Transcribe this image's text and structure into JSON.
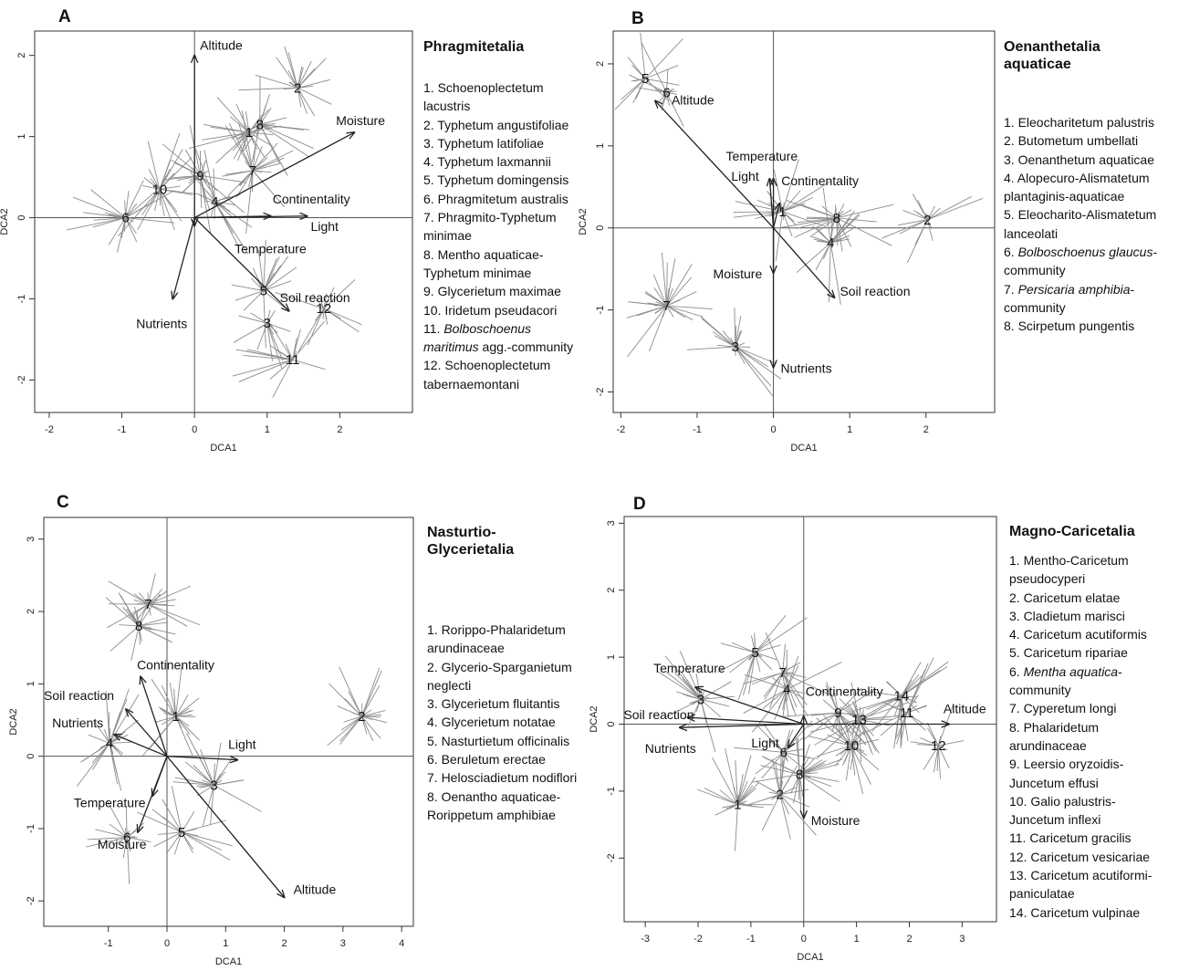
{
  "chart_data": [
    {
      "panel": "A",
      "type": "scatter",
      "title": "Phragmitetalia",
      "xlabel": "DCA1",
      "ylabel": "DCA2",
      "xlim": [
        -2.2,
        3.0
      ],
      "ylim": [
        -2.4,
        2.3
      ],
      "xticks": [
        -2,
        -1,
        0,
        1,
        2
      ],
      "yticks": [
        -2,
        -1,
        0,
        1,
        2
      ],
      "legend": [
        "1. Schoenoplectetum lacustris",
        "2. Typhetum angustifoliae",
        "3. Typhetum latifoliae",
        "4. Typhetum laxmannii",
        "5. Typhetum domingensis",
        "6. Phragmitetum australis",
        "7. Phragmito-Typhetum minimae",
        "8. Mentho aquaticae-Typhetum minimae",
        "9. Glycerietum maximae",
        "10. Iridetum pseudacori",
        "11. Bolboschoenus maritimus agg.-community",
        "12. Schoenoplectetum tabernaemontani"
      ],
      "centroids": [
        {
          "label": "1",
          "x": 0.75,
          "y": 1.05
        },
        {
          "label": "2",
          "x": 1.42,
          "y": 1.6
        },
        {
          "label": "3",
          "x": 1.0,
          "y": -1.3
        },
        {
          "label": "4",
          "x": 0.28,
          "y": 0.2
        },
        {
          "label": "5",
          "x": 0.95,
          "y": -0.9
        },
        {
          "label": "6",
          "x": -0.95,
          "y": 0.0
        },
        {
          "label": "7",
          "x": 0.8,
          "y": 0.58
        },
        {
          "label": "8",
          "x": 0.9,
          "y": 1.15
        },
        {
          "label": "9",
          "x": 0.08,
          "y": 0.52
        },
        {
          "label": "10",
          "x": -0.48,
          "y": 0.35
        },
        {
          "label": "11",
          "x": 1.35,
          "y": -1.75
        },
        {
          "label": "12",
          "x": 1.78,
          "y": -1.12
        }
      ],
      "vectors": [
        {
          "name": "Altitude",
          "x": 0.0,
          "y": 2.0
        },
        {
          "name": "Moisture",
          "x": 2.2,
          "y": 1.05
        },
        {
          "name": "Continentality",
          "x": 1.05,
          "y": 0.02
        },
        {
          "name": "Light",
          "x": 1.55,
          "y": 0.02
        },
        {
          "name": "Temperature",
          "x": 0.0,
          "y": -0.1
        },
        {
          "name": "Soil reaction",
          "x": 1.3,
          "y": -1.15
        },
        {
          "name": "Nutrients",
          "x": -0.3,
          "y": -1.0
        }
      ]
    },
    {
      "panel": "B",
      "type": "scatter",
      "title": "Oenanthetalia\naquaticae",
      "xlabel": "DCA1",
      "ylabel": "DCA2",
      "xlim": [
        -2.1,
        2.9
      ],
      "ylim": [
        -2.25,
        2.4
      ],
      "xticks": [
        -2,
        -1,
        0,
        1,
        2
      ],
      "yticks": [
        -2,
        -1,
        0,
        1,
        2
      ],
      "legend": [
        "1. Eleocharitetum palustris",
        "2. Butometum umbellati",
        "3. Oenanthetum aquaticae",
        "4. Alopecuro-Alismatetum plantaginis-aquaticae",
        "5. Eleocharito-Alismatetum lanceolati",
        "6. Bolboschoenus glaucus-community",
        "7. Persicaria amphibia-community",
        "8. Scirpetum pungentis"
      ],
      "centroids": [
        {
          "label": "1",
          "x": 0.12,
          "y": 0.2
        },
        {
          "label": "2",
          "x": 2.02,
          "y": 0.1
        },
        {
          "label": "3",
          "x": -0.5,
          "y": -1.45
        },
        {
          "label": "4",
          "x": 0.75,
          "y": -0.18
        },
        {
          "label": "5",
          "x": -1.68,
          "y": 1.82
        },
        {
          "label": "6",
          "x": -1.4,
          "y": 1.65
        },
        {
          "label": "7",
          "x": -1.4,
          "y": -0.95
        },
        {
          "label": "8",
          "x": 0.83,
          "y": 0.12
        }
      ],
      "vectors": [
        {
          "name": "Altitude",
          "x": -1.55,
          "y": 1.55
        },
        {
          "name": "Temperature",
          "x": 0.0,
          "y": 0.6
        },
        {
          "name": "Light",
          "x": -0.05,
          "y": 0.6
        },
        {
          "name": "Continentality",
          "x": 0.08,
          "y": 0.3
        },
        {
          "name": "Moisture",
          "x": 0.0,
          "y": -0.55
        },
        {
          "name": "Soil reaction",
          "x": 0.8,
          "y": -0.85
        },
        {
          "name": "Nutrients",
          "x": 0.0,
          "y": -1.7
        }
      ]
    },
    {
      "panel": "C",
      "type": "scatter",
      "title": "Nasturtio-\nGlycerietalia",
      "xlabel": "DCA1",
      "ylabel": "DCA2",
      "xlim": [
        -2.1,
        4.2
      ],
      "ylim": [
        -2.35,
        3.3
      ],
      "xticks": [
        -1,
        0,
        1,
        2,
        3,
        4
      ],
      "yticks": [
        -2,
        -1,
        0,
        1,
        2,
        3
      ],
      "legend": [
        "1. Rorippo-Phalaridetum arundinaceae",
        "2. Glycerio-Sparganietum neglecti",
        "3. Glycerietum fluitantis",
        "4. Glycerietum notatae",
        "5. Nasturtietum officinalis",
        "6. Beruletum erectae",
        "7. Helosciadietum nodiflori",
        "8. Oenantho aquaticae-Rorippetum amphibiae"
      ],
      "centroids": [
        {
          "label": "1",
          "x": 0.15,
          "y": 0.55
        },
        {
          "label": "2",
          "x": 3.32,
          "y": 0.55
        },
        {
          "label": "3",
          "x": 0.8,
          "y": -0.4
        },
        {
          "label": "4",
          "x": -0.98,
          "y": 0.18
        },
        {
          "label": "5",
          "x": 0.25,
          "y": -1.05
        },
        {
          "label": "6",
          "x": -0.68,
          "y": -1.12
        },
        {
          "label": "7",
          "x": -0.32,
          "y": 2.1
        },
        {
          "label": "8",
          "x": -0.48,
          "y": 1.8
        }
      ],
      "vectors": [
        {
          "name": "Continentality",
          "x": -0.45,
          "y": 1.1
        },
        {
          "name": "Soil reaction",
          "x": -0.7,
          "y": 0.65
        },
        {
          "name": "Nutrients",
          "x": -0.9,
          "y": 0.3
        },
        {
          "name": "Light",
          "x": 1.2,
          "y": -0.05
        },
        {
          "name": "Temperature",
          "x": -0.25,
          "y": -0.55
        },
        {
          "name": "Moisture",
          "x": -0.5,
          "y": -1.05
        },
        {
          "name": "Altitude",
          "x": 2.0,
          "y": -1.95
        }
      ]
    },
    {
      "panel": "D",
      "type": "scatter",
      "title": "Magno-Caricetalia",
      "xlabel": "DCA1",
      "ylabel": "DCA2",
      "xlim": [
        -3.4,
        3.65
      ],
      "ylim": [
        -2.95,
        3.1
      ],
      "xticks": [
        -3,
        -2,
        -1,
        0,
        1,
        2,
        3
      ],
      "yticks": [
        -2,
        -1,
        0,
        1,
        2,
        3
      ],
      "legend": [
        "1. Mentho-Caricetum pseudocyperi",
        "2. Caricetum elatae",
        "3. Cladietum marisci",
        "4. Caricetum acutiformis",
        "5. Caricetum ripariae",
        "6. Mentha aquatica-community",
        "7. Cyperetum longi",
        "8. Phalaridetum arundinaceae",
        "9. Leersio oryzoidis-Juncetum effusi",
        "10. Galio palustris-Juncetum inflexi",
        "11. Caricetum gracilis",
        "12. Caricetum vesicariae",
        "13. Caricetum acutiformi-paniculatae",
        "14. Caricetum vulpinae"
      ],
      "centroids": [
        {
          "label": "1",
          "x": -1.25,
          "y": -1.2
        },
        {
          "label": "2",
          "x": -0.45,
          "y": -1.05
        },
        {
          "label": "3",
          "x": -1.95,
          "y": 0.37
        },
        {
          "label": "4",
          "x": -0.32,
          "y": 0.52
        },
        {
          "label": "5",
          "x": -0.92,
          "y": 1.07
        },
        {
          "label": "6",
          "x": -0.38,
          "y": -0.42
        },
        {
          "label": "7",
          "x": -0.4,
          "y": 0.77
        },
        {
          "label": "8",
          "x": -0.08,
          "y": -0.75
        },
        {
          "label": "9",
          "x": 0.65,
          "y": 0.17
        },
        {
          "label": "10",
          "x": 0.9,
          "y": -0.32
        },
        {
          "label": "11",
          "x": 1.95,
          "y": 0.17
        },
        {
          "label": "12",
          "x": 2.55,
          "y": -0.32
        },
        {
          "label": "13",
          "x": 1.05,
          "y": 0.07
        },
        {
          "label": "14",
          "x": 1.85,
          "y": 0.42
        }
      ],
      "vectors": [
        {
          "name": "Continentality",
          "x": 0.0,
          "y": 0.12
        },
        {
          "name": "Altitude",
          "x": 2.75,
          "y": 0.0
        },
        {
          "name": "Temperature",
          "x": -2.05,
          "y": 0.55
        },
        {
          "name": "Soil reaction",
          "x": -2.2,
          "y": 0.1
        },
        {
          "name": "Nutrients",
          "x": -2.35,
          "y": -0.05
        },
        {
          "name": "Light",
          "x": -0.3,
          "y": -0.35
        },
        {
          "name": "Moisture",
          "x": 0.0,
          "y": -1.4
        }
      ]
    }
  ]
}
